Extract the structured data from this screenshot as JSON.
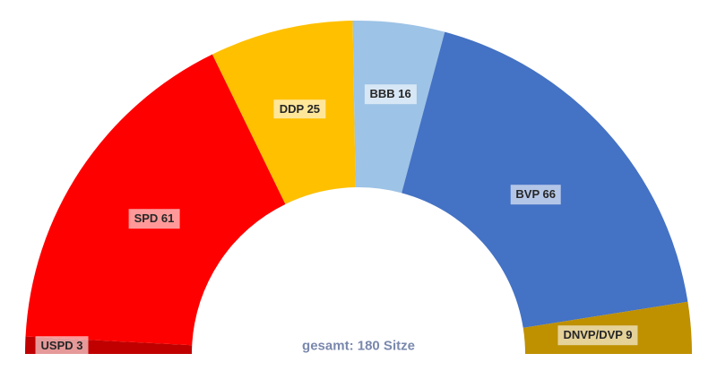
{
  "chart_data": {
    "type": "pie",
    "subtype": "half-donut",
    "title": "",
    "center_label": "gesamt: 180 Sitze",
    "total_seats": 180,
    "categories": [
      "USPD",
      "SPD",
      "DDP",
      "BBB",
      "BVP",
      "DNVP/DVP"
    ],
    "values": [
      3,
      61,
      25,
      16,
      66,
      9
    ],
    "labels": [
      "USPD 3",
      "SPD 61",
      "DDP 25",
      "BBB 16",
      "BVP 66",
      "DNVP/DVP 9"
    ],
    "colors": [
      "#c00000",
      "#ff0000",
      "#ffc000",
      "#9dc3e6",
      "#4472c4",
      "#bf9000"
    ],
    "layout": {
      "start_angle_deg": 180,
      "end_angle_deg": 0,
      "label_radius_frac": [
        0.89,
        0.735,
        0.755,
        0.785,
        0.715,
        0.72
      ],
      "label_bg": "rgba(255,255,255,0.6)",
      "label_text_color": "#262626",
      "center_label_color": "#7a88ad",
      "background": "#ffffff",
      "legend": "none",
      "grid": false
    }
  }
}
